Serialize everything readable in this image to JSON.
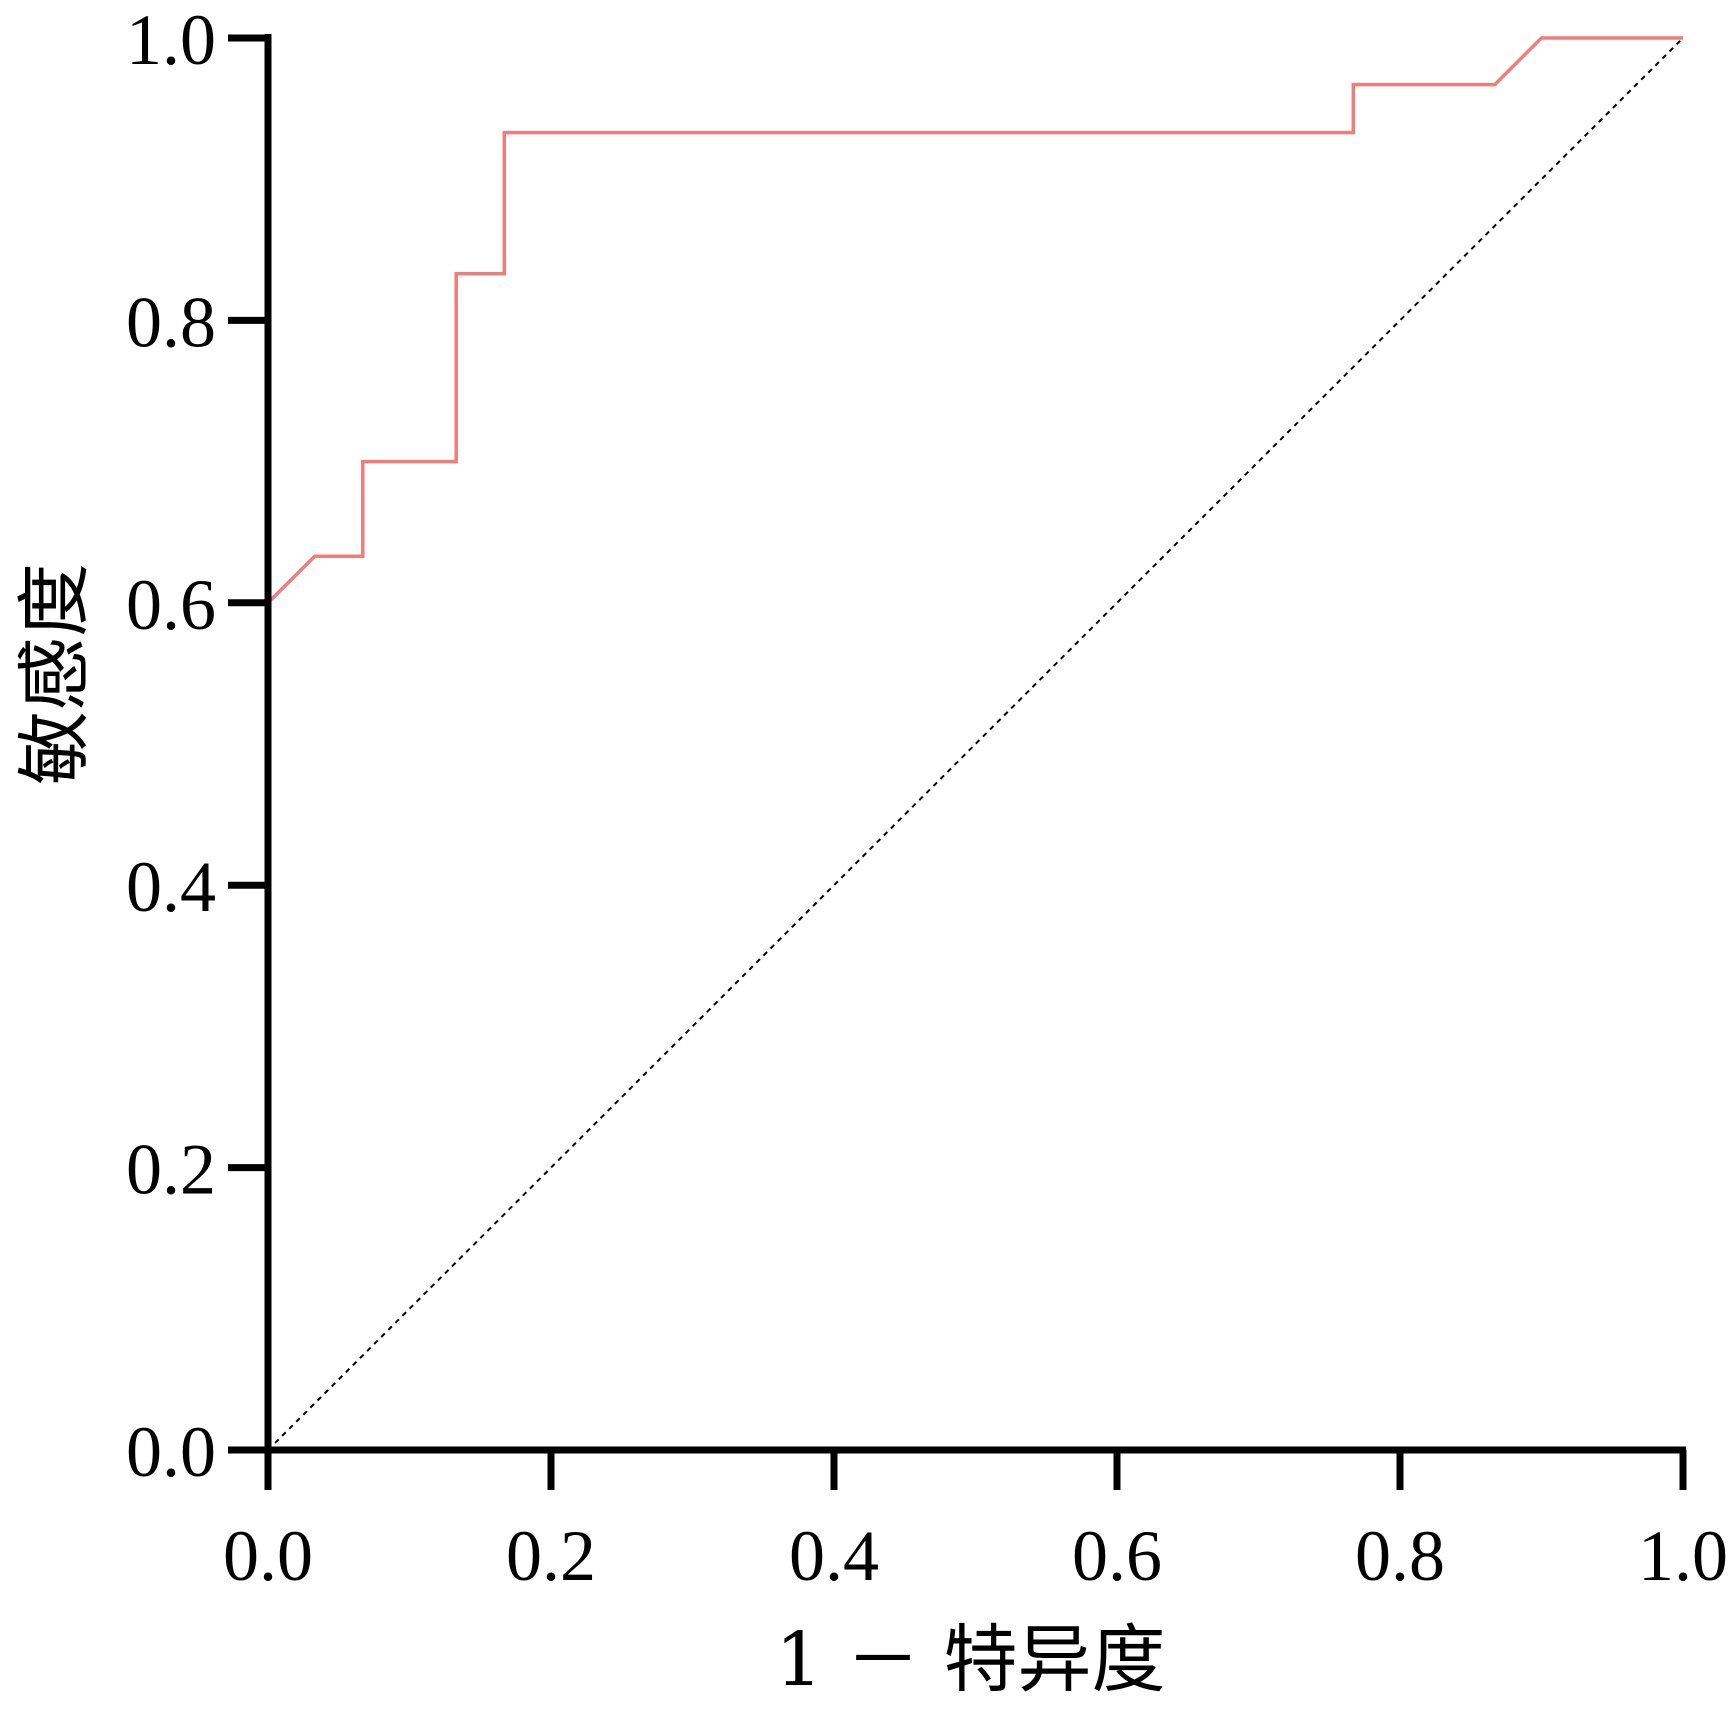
{
  "chart_data": {
    "type": "line",
    "title": "",
    "xlabel": "1 － 特异度",
    "ylabel": "敏感度",
    "xlim": [
      0,
      1
    ],
    "ylim": [
      0,
      1
    ],
    "x_ticks": [
      "0.0",
      "0.2",
      "0.4",
      "0.6",
      "0.8",
      "1.0"
    ],
    "y_ticks": [
      "0.0",
      "0.2",
      "0.4",
      "0.6",
      "0.8",
      "1.0"
    ],
    "grid": false,
    "legend": "none",
    "series": [
      {
        "color": "#f07c7c",
        "x": [
          0.0,
          0.0,
          0.033,
          0.067,
          0.067,
          0.133,
          0.133,
          0.167,
          0.167,
          0.767,
          0.767,
          0.867,
          0.9,
          1.0
        ],
        "y": [
          0.0,
          0.6,
          0.633,
          0.633,
          0.7,
          0.7,
          0.833,
          0.833,
          0.933,
          0.933,
          0.967,
          0.967,
          1.0,
          1.0
        ]
      },
      {
        "color": "#000000",
        "style": "dotted",
        "x": [
          0,
          1
        ],
        "y": [
          0,
          1
        ]
      }
    ]
  }
}
